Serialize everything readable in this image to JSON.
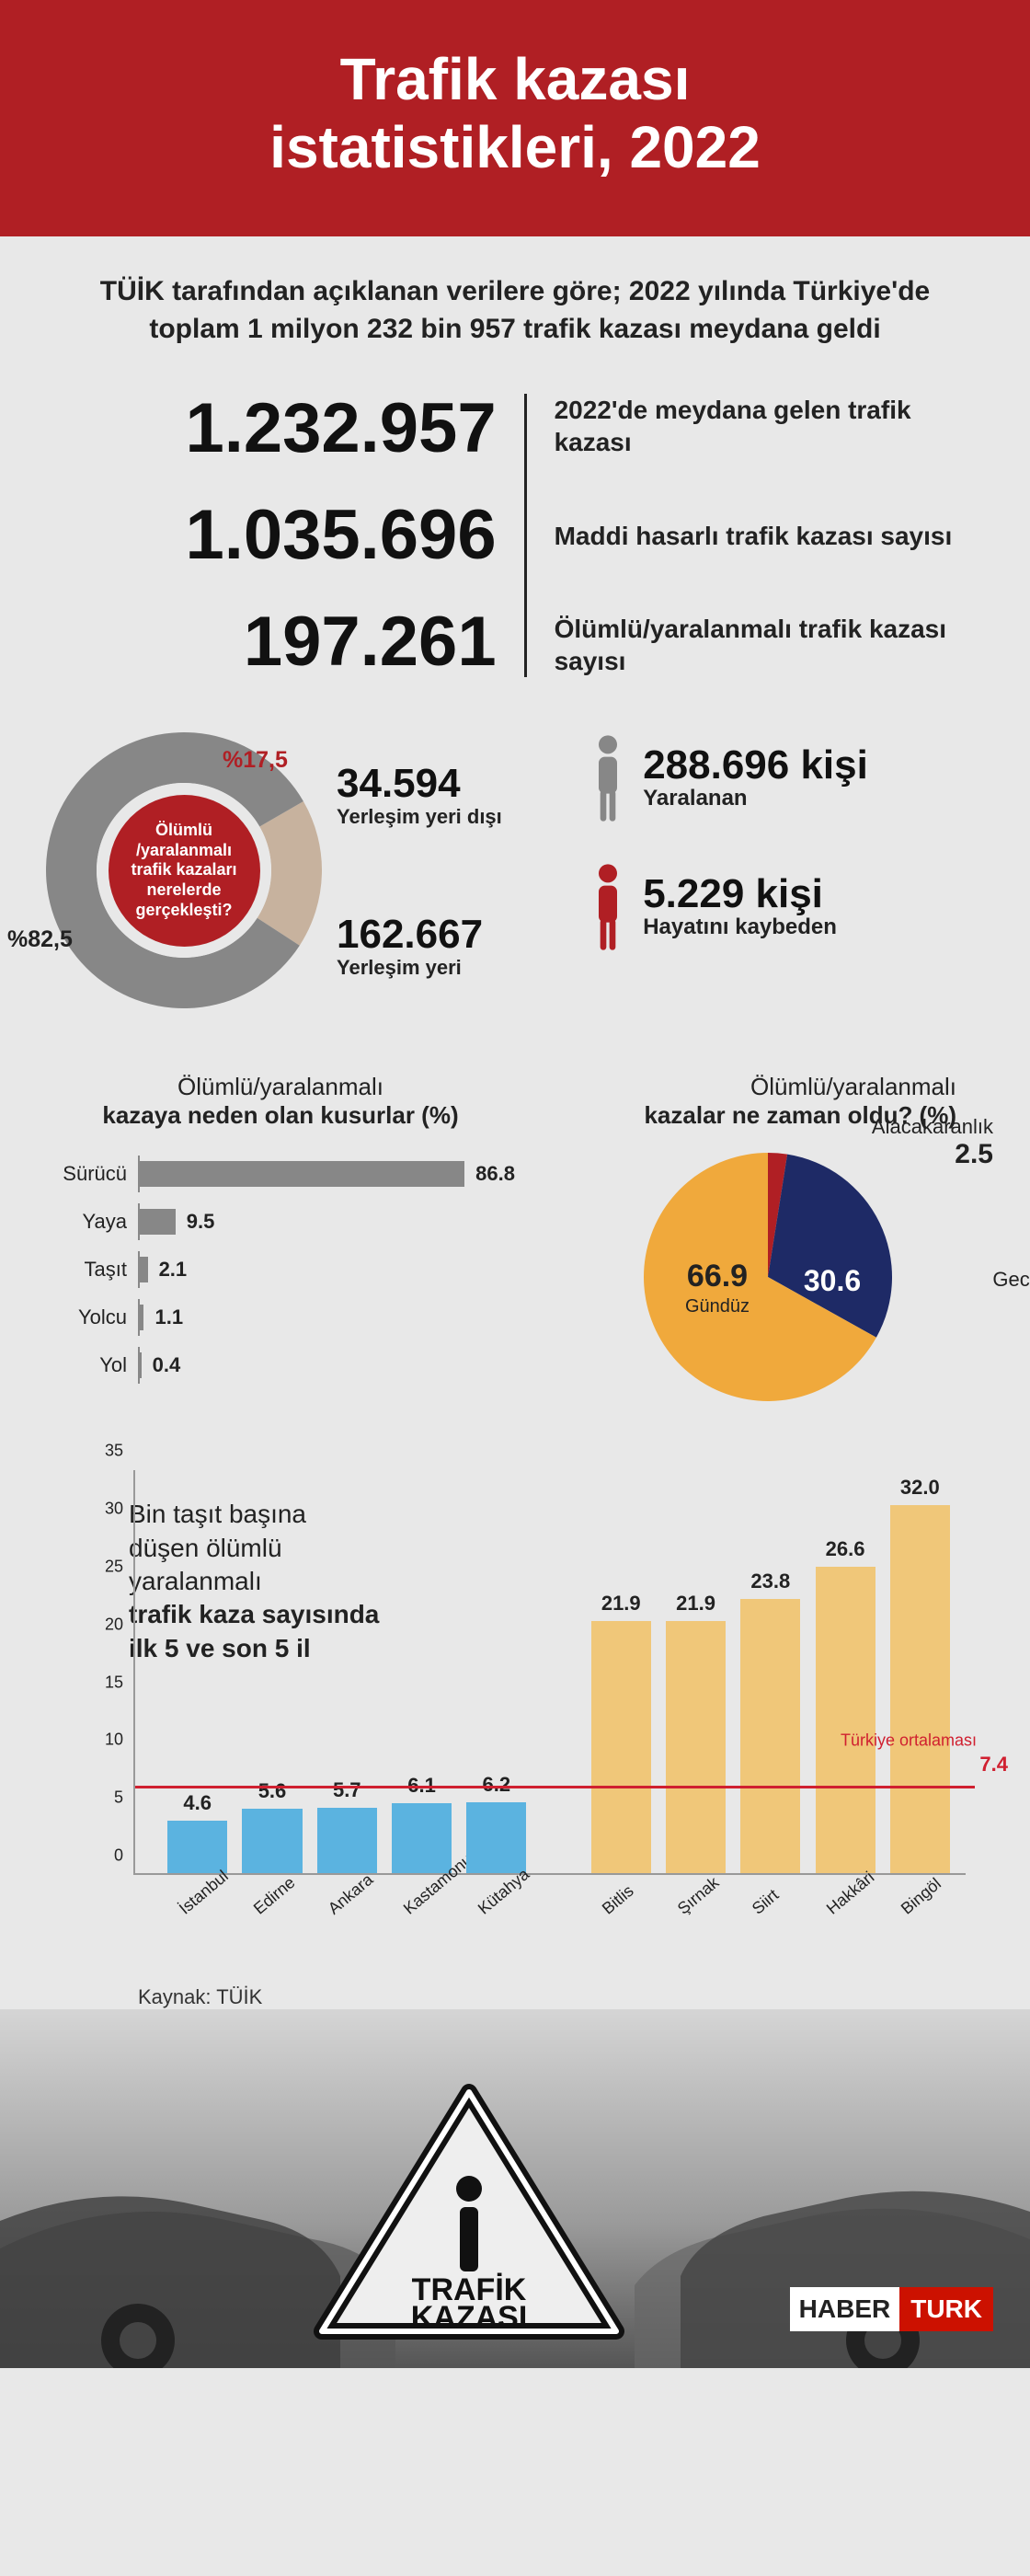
{
  "colors": {
    "red": "#b01f24",
    "gray": "#878787",
    "donut_tan": "#c7b29e",
    "pie_yellow": "#f0a93c",
    "pie_navy": "#1e2a66",
    "bar_blue": "#5bb3e0",
    "bar_tan": "#f0c779",
    "avg_red": "#d02030"
  },
  "header": {
    "title_line1": "Trafik kazası",
    "title_line2": "istatistikleri, 2022"
  },
  "intro": "TÜİK tarafından açıklanan verilere göre; 2022 yılında Türkiye'de toplam 1 milyon 232 bin 957 trafik kazası meydana geldi",
  "bigstats": [
    {
      "value": "1.232.957",
      "label": "2022'de meydana gelen trafik kazası"
    },
    {
      "value": "1.035.696",
      "label": "Maddi hasarlı trafik kazası sayısı"
    },
    {
      "value": "197.261",
      "label": "Ölümlü/yaralanmalı trafik kazası sayısı"
    }
  ],
  "donut": {
    "center_text": "Ölümlü /yaralanmalı trafik kazaları nerelerde gerçekleşti?",
    "slices": [
      {
        "pct": 82.5,
        "color": "#878787",
        "pct_label": "%82,5"
      },
      {
        "pct": 17.5,
        "color": "#c7b29e",
        "pct_label": "%17,5"
      }
    ],
    "outside_city": {
      "value": "34.594",
      "label": "Yerleşim yeri dışı"
    },
    "inside_city": {
      "value": "162.667",
      "label": "Yerleşim yeri"
    }
  },
  "people": [
    {
      "value": "288.696 kişi",
      "label": "Yaralanan",
      "icon_color": "#878787"
    },
    {
      "value": "5.229 kişi",
      "label": "Hayatını kaybeden",
      "icon_color": "#b01f24"
    }
  ],
  "faults": {
    "title_reg": "Ölümlü/yaralanmalı",
    "title_bold": "kazaya neden olan kusurlar (%)",
    "max": 100,
    "rows": [
      {
        "cat": "Sürücü",
        "val": 86.8
      },
      {
        "cat": "Yaya",
        "val": 9.5
      },
      {
        "cat": "Taşıt",
        "val": 2.1
      },
      {
        "cat": "Yolcu",
        "val": 1.1
      },
      {
        "cat": "Yol",
        "val": 0.4
      }
    ]
  },
  "timepie": {
    "title_reg": "Ölümlü/yaralanmalı",
    "title_bold": "kazalar ne zaman oldu? (%)",
    "slices": [
      {
        "name": "Gündüz",
        "val": 66.9,
        "color": "#f0a93c"
      },
      {
        "name": "Gece",
        "val": 30.6,
        "color": "#1e2a66"
      },
      {
        "name": "Alacakaranlık",
        "val": 2.5,
        "color": "#b01f24"
      }
    ]
  },
  "provchart": {
    "title_lines": [
      "Bin taşıt başına",
      "düşen ölümlü",
      "yaralanmalı",
      "trafik kaza sayısında",
      "ilk 5 ve son 5 il"
    ],
    "title_bold_idx": [
      3,
      4
    ],
    "ymax": 35,
    "ytick_step": 5,
    "avg_label": "Türkiye ortalaması",
    "avg_value": 7.4,
    "bar_width_pct": 7.2,
    "bar_gap_pct": 1.8,
    "bars": [
      {
        "name": "İstanbul",
        "val": 4.6,
        "color": "#5bb3e0"
      },
      {
        "name": "Edirne",
        "val": 5.6,
        "color": "#5bb3e0"
      },
      {
        "name": "Ankara",
        "val": 5.7,
        "color": "#5bb3e0"
      },
      {
        "name": "Kastamonu",
        "val": 6.1,
        "color": "#5bb3e0"
      },
      {
        "name": "Kütahya",
        "val": 6.2,
        "color": "#5bb3e0"
      },
      {
        "name": "Bitlis",
        "val": 21.9,
        "color": "#f0c779"
      },
      {
        "name": "Şırnak",
        "val": 21.9,
        "color": "#f0c779"
      },
      {
        "name": "Siirt",
        "val": 23.8,
        "color": "#f0c779"
      },
      {
        "name": "Hakkâri",
        "val": 26.6,
        "color": "#f0c779"
      },
      {
        "name": "Bingöl",
        "val": 32.0,
        "color": "#f0c779"
      }
    ]
  },
  "source_prefix": "Kaynak: ",
  "source_name": "TÜİK",
  "sign_text_line1": "TRAFİK",
  "sign_text_line2": "KAZASI",
  "logo": {
    "part1": "HABER",
    "part2": "TURK"
  }
}
